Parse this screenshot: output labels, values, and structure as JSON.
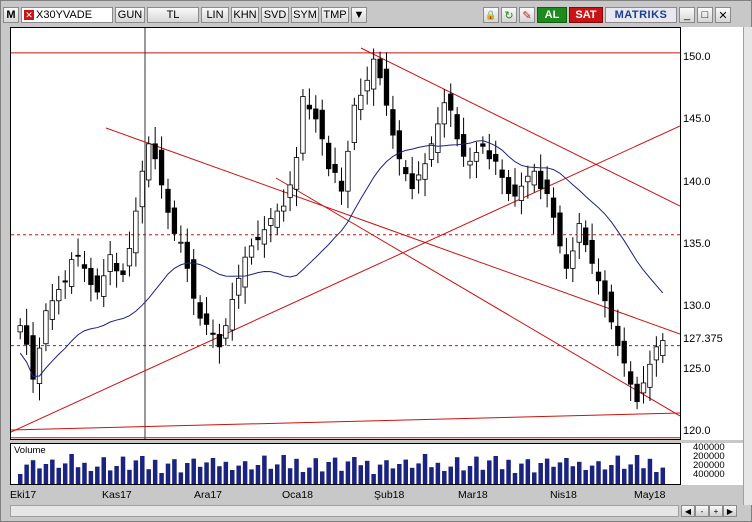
{
  "toolbar": {
    "menu_icon": "M",
    "symbol": "X30YVADE",
    "period": "GUN",
    "currency": "TL",
    "scale": "LIN",
    "khn": "KHN",
    "svd": "SVD",
    "sym": "SYM",
    "tmp": "TMP",
    "buy": "AL",
    "sell": "SAT",
    "brand": "MATRIKS"
  },
  "icons": [
    "menu-icon",
    "close-icon",
    "dropdown-icon",
    "lock-icon",
    "refresh-icon",
    "tools-icon",
    "minimize-icon",
    "maximize-icon",
    "window-close-icon"
  ],
  "colors": {
    "up": "#ffffff",
    "down": "#000000",
    "trend": "#cc1111",
    "ma": "#1a237e",
    "buy": "#1e8a1e",
    "sell": "#c81414"
  },
  "chart_data": {
    "type": "candlestick",
    "title": "X30YVADE",
    "x_labels": [
      "Eki17",
      "Kas17",
      "Ara17",
      "Oca18",
      "Şub18",
      "Mar18",
      "Nis18",
      "May18"
    ],
    "y_ticks": [
      120,
      125,
      130,
      135,
      140,
      145,
      150
    ],
    "ylim": [
      119.5,
      152.5
    ],
    "last_price": "127.375",
    "reference_lines": [
      150.5,
      135.9,
      127.0,
      119.6
    ],
    "volume": {
      "label": "Volume",
      "ticks": [
        "400000",
        "200000",
        "200000",
        "400000"
      ]
    },
    "close_series": [
      128.6,
      127.1,
      124.3,
      126.8,
      129.8,
      130.6,
      131.5,
      132.1,
      133.9,
      134.2,
      133.2,
      131.9,
      131.3,
      132.6,
      134.3,
      133.0,
      132.7,
      134.8,
      137.8,
      141.0,
      143.2,
      142.0,
      139.9,
      137.7,
      136.0,
      135.3,
      133.2,
      130.8,
      129.2,
      128.7,
      127.9,
      126.9,
      128.6,
      130.7,
      132.4,
      134.1,
      135.0,
      135.5,
      136.3,
      137.2,
      137.8,
      138.2,
      139.9,
      142.1,
      147.0,
      146.0,
      145.2,
      143.6,
      141.2,
      140.9,
      139.4,
      142.6,
      146.3,
      147.1,
      148.3,
      150.0,
      148.5,
      146.3,
      143.9,
      142.0,
      140.8,
      139.6,
      140.7,
      141.6,
      143.2,
      144.8,
      146.5,
      145.9,
      143.6,
      142.2,
      141.8,
      142.5,
      143.0,
      142.0,
      141.8,
      140.5,
      139.2,
      139.0,
      139.8,
      140.6,
      141.0,
      139.6,
      139.2,
      137.3,
      135.0,
      133.2,
      134.6,
      136.8,
      135.1,
      133.6,
      132.2,
      130.6,
      128.9,
      127.0,
      125.6,
      123.9,
      122.5,
      124.0,
      125.5,
      126.9,
      127.4
    ]
  }
}
